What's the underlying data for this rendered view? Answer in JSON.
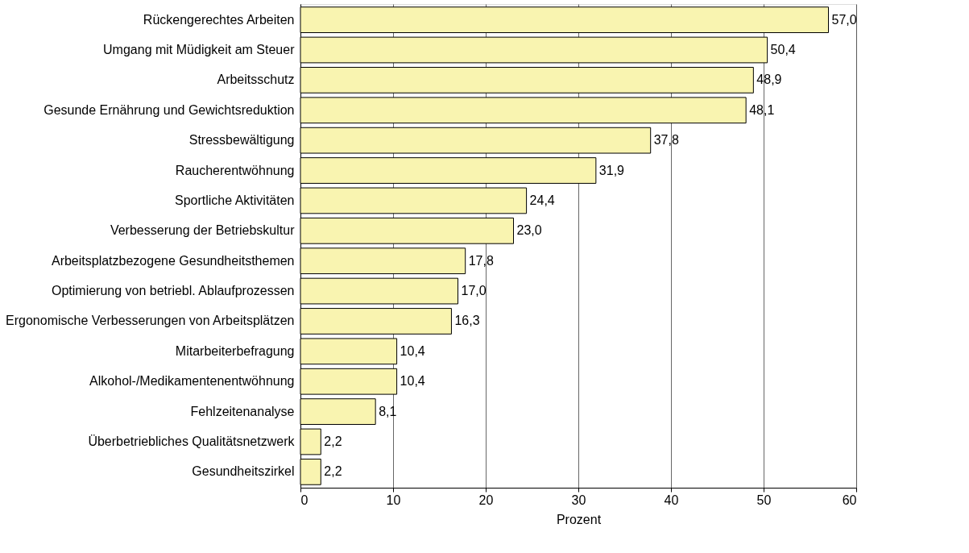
{
  "chart_data": {
    "type": "bar",
    "orientation": "horizontal",
    "xlabel": "Prozent",
    "categories": [
      "Rückengerechtes Arbeiten",
      "Umgang mit Müdigkeit am Steuer",
      "Arbeitsschutz",
      "Gesunde Ernährung und Gewichtsreduktion",
      "Stressbewältigung",
      "Raucherentwöhnung",
      "Sportliche Aktivitäten",
      "Verbesserung der Betriebskultur",
      "Arbeitsplatzbezogene Gesundheitsthemen",
      "Optimierung von betriebl. Ablaufprozessen",
      "Ergonomische Verbesserungen von Arbeitsplätzen",
      "Mitarbeiterbefragung",
      "Alkohol-/Medikamentenentwöhnung",
      "Fehlzeitenanalyse",
      "Überbetriebliches Qualitätsnetzwerk",
      "Gesundheitszirkel"
    ],
    "values": [
      57.0,
      50.4,
      48.9,
      48.1,
      37.8,
      31.9,
      24.4,
      23.0,
      17.8,
      17.0,
      16.3,
      10.4,
      10.4,
      8.1,
      2.2,
      2.2
    ],
    "value_labels": [
      "57,0",
      "50,4",
      "48,9",
      "48,1",
      "37,8",
      "31,9",
      "24,4",
      "23,0",
      "17,8",
      "17,0",
      "16,3",
      "10,4",
      "10,4",
      "8,1",
      "2,2",
      "2,2"
    ],
    "color": "#f9f4b0",
    "xlim": [
      0,
      60
    ],
    "xticks": [
      0,
      10,
      20,
      30,
      40,
      50,
      60
    ],
    "grid": "x"
  }
}
